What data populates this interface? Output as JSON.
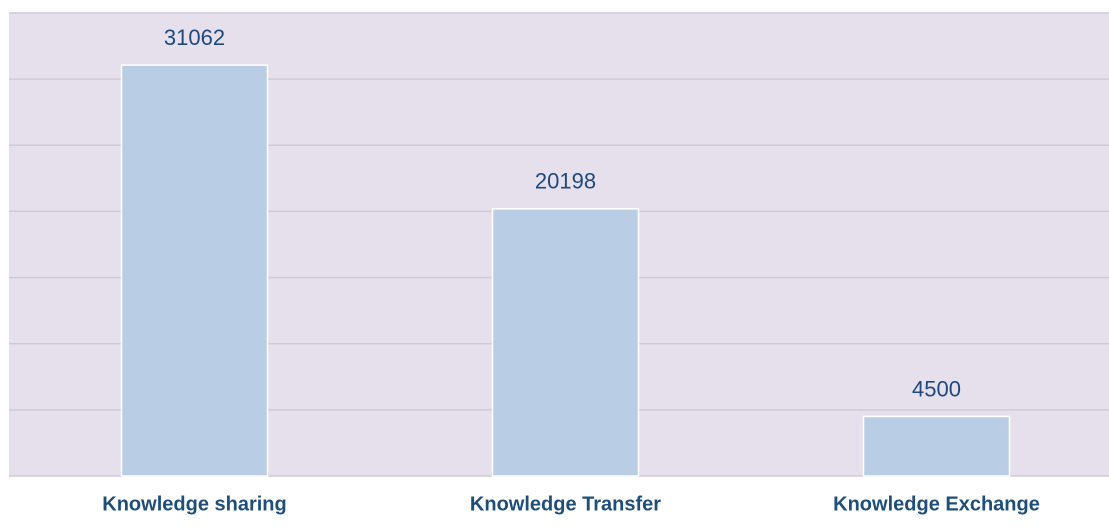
{
  "chart_data": {
    "type": "bar",
    "categories": [
      "Knowledge sharing",
      "Knowledge Transfer",
      "Knowledge Exchange"
    ],
    "values": [
      31062,
      20198,
      4500
    ],
    "color": "#b9cde5",
    "ylim": [
      0,
      35000
    ],
    "yticks": [
      0,
      5000,
      10000,
      15000,
      20000,
      25000,
      30000,
      35000
    ],
    "grid": true
  }
}
